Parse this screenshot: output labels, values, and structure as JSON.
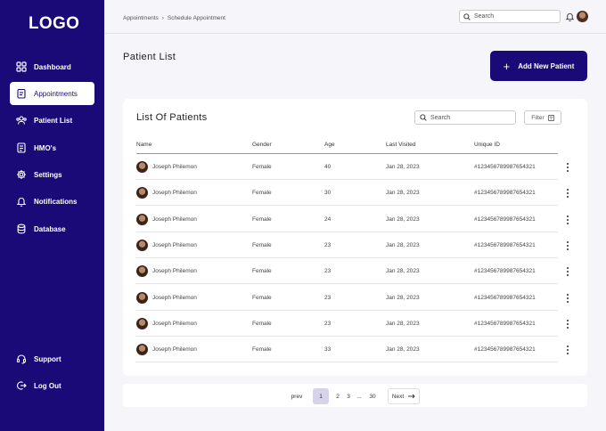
{
  "logo": "LOGO",
  "sidebar": {
    "items": [
      {
        "label": "Dashboard",
        "icon": "grid-icon"
      },
      {
        "label": "Appointments",
        "icon": "clipboard-icon"
      },
      {
        "label": "Patient List",
        "icon": "users-icon"
      },
      {
        "label": "HMO's",
        "icon": "document-icon"
      },
      {
        "label": "Settings",
        "icon": "gear-icon"
      },
      {
        "label": "Notifications",
        "icon": "bell-icon"
      },
      {
        "label": "Database",
        "icon": "database-icon"
      }
    ],
    "bottom": [
      {
        "label": "Support",
        "icon": "headset-icon"
      },
      {
        "label": "Log Out",
        "icon": "logout-icon"
      }
    ]
  },
  "breadcrumb": [
    "Appointments",
    "›",
    "Schedule Appointment"
  ],
  "top_search_placeholder": "Search",
  "page_title": "Patient List",
  "add_button": "Add New Patient",
  "card": {
    "title": "List Of Patients",
    "search_placeholder": "Search",
    "filter_label": "Filter",
    "columns": [
      "Name",
      "Gender",
      "Age",
      "Last Visited",
      "Unique ID"
    ],
    "rows": [
      {
        "name": "Joseph Philemon",
        "gender": "Female",
        "age": "40",
        "last": "Jan 28, 2023",
        "id": "#12345678998765432​1"
      },
      {
        "name": "Joseph Philemon",
        "gender": "Female",
        "age": "30",
        "last": "Jan 28, 2023",
        "id": "#123456789987654321"
      },
      {
        "name": "Joseph Philemon",
        "gender": "Female",
        "age": "24",
        "last": "Jan 28, 2023",
        "id": "#123456789987654321"
      },
      {
        "name": "Joseph Philemon",
        "gender": "Female",
        "age": "23",
        "last": "Jan 28, 2023",
        "id": "#123456789987654321"
      },
      {
        "name": "Joseph Philemon",
        "gender": "Female",
        "age": "23",
        "last": "Jan 28, 2023",
        "id": "#123456789987654321"
      },
      {
        "name": "Joseph Philemon",
        "gender": "Female",
        "age": "23",
        "last": "Jan 28, 2023",
        "id": "#123456789987654321"
      },
      {
        "name": "Joseph Philemon",
        "gender": "Female",
        "age": "23",
        "last": "Jan 28, 2023",
        "id": "#123456789987654321"
      },
      {
        "name": "Joseph Philemon",
        "gender": "Female",
        "age": "33",
        "last": "Jan 28, 2023",
        "id": "#123456789987654321"
      }
    ]
  },
  "pagination": {
    "prev": "prev",
    "pages": [
      "1",
      "2",
      "3",
      "...",
      "30"
    ],
    "current": "1",
    "next": "Next"
  },
  "colors": {
    "primary": "#1a0a78",
    "background": "#f5f5fa",
    "current_page": "#d6d3ea"
  }
}
